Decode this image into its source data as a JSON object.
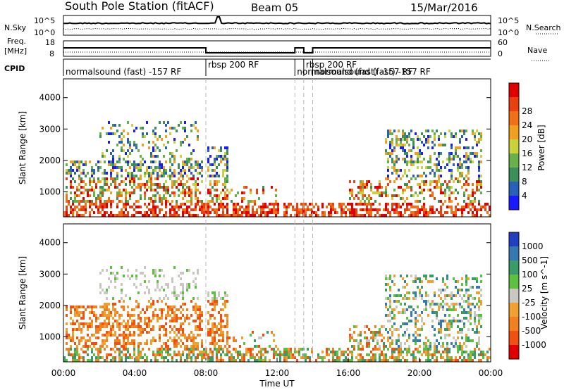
{
  "header": {
    "title": "South Pole Station (fitACF)",
    "beam": "Beam 05",
    "date": "15/Mar/2016"
  },
  "top_panels": {
    "nsky": {
      "label": "N.Sky",
      "right_label": "N.Search",
      "ticks_left": [
        "10^5",
        "10^0"
      ],
      "ticks_right": [
        "10^5",
        "10^0"
      ]
    },
    "freq": {
      "label_line1": "Freq.",
      "label_line2": "[MHz]",
      "ticks_left": [
        "18",
        "8"
      ],
      "ticks_right": [
        "60",
        "0"
      ],
      "right_label": "Nave"
    },
    "cpid": {
      "label": "CPID",
      "programs": [
        {
          "name": "normalsound (fast) -157 RF",
          "start_h": 0.0,
          "end_h": 8.0
        },
        {
          "name": "rbsp 200 RF",
          "start_h": 8.0,
          "end_h": 13.0
        },
        {
          "name": "normalsound (fast) -157 RF",
          "start_h": 13.0,
          "end_h": 13.5
        },
        {
          "name": "rbsp 200 RF",
          "start_h": 13.5,
          "end_h": 14.0
        },
        {
          "name": "normalsound (fast) -157 RF",
          "start_h": 14.0,
          "end_h": 24.0
        }
      ]
    }
  },
  "chart_data": [
    {
      "type": "heatmap",
      "ylabel": "Slant Range [km]",
      "yticks": [
        "1000",
        "2000",
        "3000",
        "4000"
      ],
      "ylim": [
        200,
        4600
      ],
      "xlim": [
        0,
        24
      ],
      "colorbar": {
        "label": "Power [dB]",
        "ticks": [
          "4",
          "8",
          "12",
          "16",
          "20",
          "24",
          "28"
        ],
        "colors": [
          "#1a1aff",
          "#2a60b8",
          "#3d8f5a",
          "#6ab04a",
          "#c8d23c",
          "#f0a020",
          "#f07018",
          "#e84010",
          "#e00000"
        ]
      }
    },
    {
      "type": "heatmap",
      "ylabel": "Slant Range [km]",
      "yticks": [
        "1000",
        "2000",
        "3000",
        "4000"
      ],
      "ylim": [
        200,
        4600
      ],
      "xlim": [
        0,
        24
      ],
      "xlabel": "Time UT",
      "xticks": [
        "00:00",
        "04:00",
        "08:00",
        "12:00",
        "16:00",
        "20:00",
        "00:00"
      ],
      "colorbar": {
        "label": "Velocity [m s^-1]",
        "ticks": [
          "1000",
          "500",
          "100",
          "25",
          "-25",
          "-100",
          "-500",
          "-1000"
        ],
        "colors": [
          "#2040c0",
          "#3878b0",
          "#3a9a6a",
          "#5ec040",
          "#c8c8c0",
          "#f0a030",
          "#f08020",
          "#f05010",
          "#e00000"
        ]
      }
    }
  ]
}
